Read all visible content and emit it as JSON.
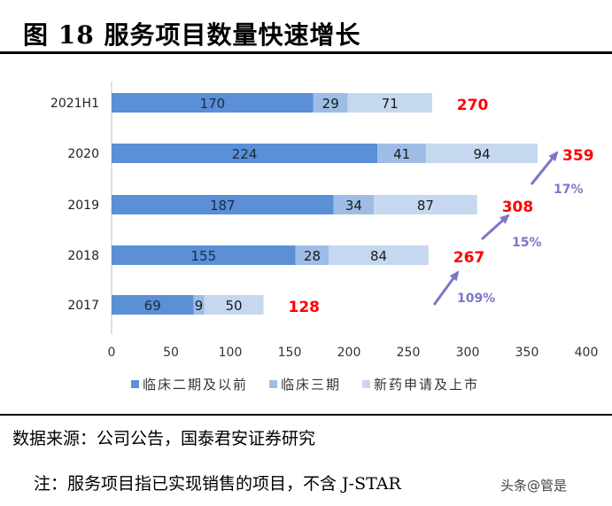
{
  "figure": {
    "title": "图 18 服务项目数量快速增长",
    "source": "数据来源：公司公告，国泰君安证券研究",
    "note": "注：服务项目指已实现销售的项目，不含 J-STAR",
    "watermark": "头条@管是"
  },
  "chart_data": {
    "type": "bar",
    "orientation": "horizontal",
    "stacked": true,
    "categories": [
      "2021H1",
      "2020",
      "2019",
      "2018",
      "2017"
    ],
    "series": [
      {
        "name": "临床二期及以前",
        "color": "#5b8fd6",
        "values": [
          170,
          224,
          187,
          155,
          69
        ]
      },
      {
        "name": "临床三期",
        "color": "#9dbde6",
        "values": [
          29,
          41,
          34,
          28,
          9
        ]
      },
      {
        "name": "新药申请及上市",
        "color": "#c6d8ef",
        "values": [
          71,
          94,
          87,
          84,
          50
        ]
      }
    ],
    "totals": [
      "270",
      "359",
      "308",
      "267",
      "128"
    ],
    "total_color": "#ff0000",
    "growth_annotations": [
      {
        "text": "17%",
        "between": [
          "2019",
          "2020"
        ]
      },
      {
        "text": "15%",
        "between": [
          "2018",
          "2019"
        ]
      },
      {
        "text": "109%",
        "between": [
          "2017",
          "2018"
        ]
      }
    ],
    "annotation_color": "#7b78c8",
    "xlim": [
      0,
      400
    ],
    "xticks": [
      0,
      50,
      100,
      150,
      200,
      250,
      300,
      350,
      400
    ],
    "xlabel": "",
    "ylabel": "",
    "grid": false,
    "legend_position": "bottom"
  }
}
